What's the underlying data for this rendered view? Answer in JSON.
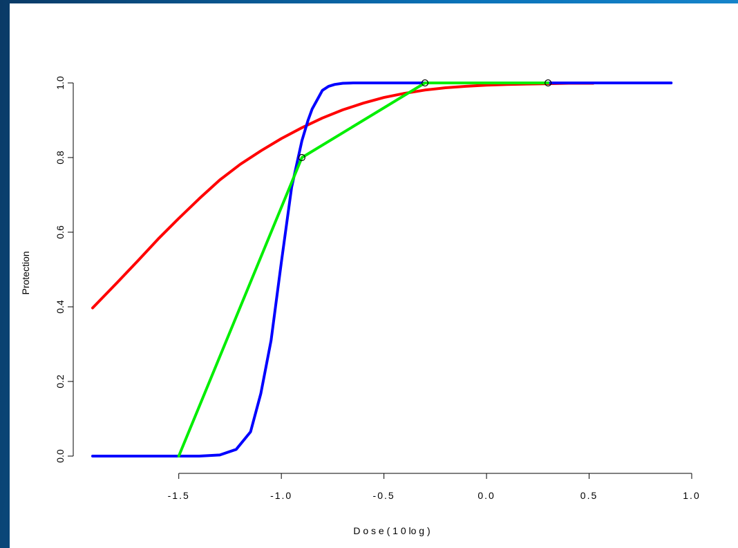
{
  "chart_data": {
    "type": "line",
    "xlabel": "D o s e  ( 1 0 lo g )",
    "ylabel": "Protection",
    "xlim": [
      -1.92,
      1.0
    ],
    "ylim": [
      0.0,
      1.0
    ],
    "grid": false,
    "x_ticks": [
      "-1.5",
      "-1.0",
      "-0.5",
      "0.0",
      "0.5",
      "1.0"
    ],
    "x_tick_values": [
      -1.5,
      -1.0,
      -0.5,
      0.0,
      0.5,
      1.0
    ],
    "y_ticks": [
      "0.0",
      "0.2",
      "0.4",
      "0.6",
      "0.8",
      "1.0"
    ],
    "y_tick_values": [
      0.0,
      0.2,
      0.4,
      0.6,
      0.8,
      1.0
    ],
    "series": [
      {
        "color": "#ff0000",
        "x": [
          -1.92,
          -1.8,
          -1.7,
          -1.6,
          -1.5,
          -1.4,
          -1.3,
          -1.2,
          -1.1,
          -1.0,
          -0.9,
          -0.8,
          -0.7,
          -0.6,
          -0.5,
          -0.4,
          -0.3,
          -0.2,
          -0.1,
          0.0,
          0.1,
          0.2,
          0.3,
          0.4,
          0.5,
          0.52
        ],
        "y": [
          0.397,
          0.465,
          0.523,
          0.582,
          0.637,
          0.69,
          0.74,
          0.782,
          0.818,
          0.851,
          0.88,
          0.906,
          0.928,
          0.946,
          0.961,
          0.972,
          0.981,
          0.987,
          0.991,
          0.994,
          0.996,
          0.997,
          0.998,
          0.999,
          0.999,
          0.999
        ]
      },
      {
        "color": "#0000ff",
        "x": [
          -1.92,
          -1.5,
          -1.4,
          -1.3,
          -1.22,
          -1.15,
          -1.1,
          -1.05,
          -1.0,
          -0.95,
          -0.9,
          -0.87,
          -0.85,
          -0.82,
          -0.8,
          -0.77,
          -0.74,
          -0.7,
          -0.65,
          -0.6,
          0.0,
          0.9
        ],
        "y": [
          0.0,
          0.0,
          0.0,
          0.003,
          0.018,
          0.065,
          0.168,
          0.31,
          0.52,
          0.72,
          0.845,
          0.9,
          0.93,
          0.96,
          0.98,
          0.991,
          0.996,
          0.999,
          1.0,
          1.0,
          1.0,
          1.0
        ]
      },
      {
        "color": "#00ee00",
        "x": [
          -1.5,
          -0.9,
          -0.3,
          0.3
        ],
        "y": [
          0.0,
          0.8,
          1.0,
          1.0
        ]
      }
    ],
    "points": {
      "x": [
        -0.9,
        -0.3,
        0.3
      ],
      "y": [
        0.8,
        1.0,
        1.0
      ]
    }
  }
}
